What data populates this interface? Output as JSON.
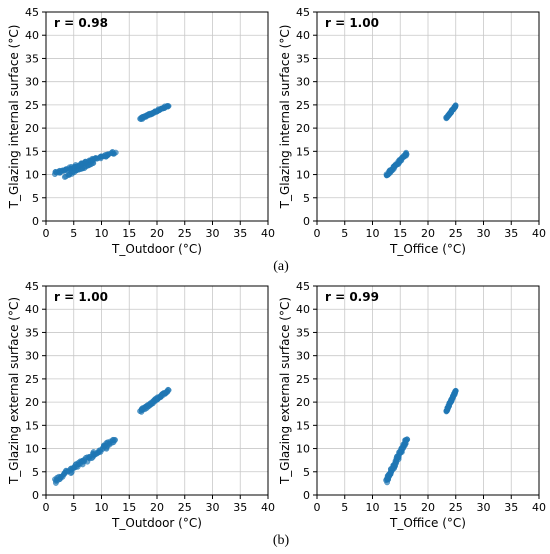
{
  "captions": {
    "a": "(a)",
    "b": "(b)"
  },
  "colors": {
    "point": "#1f77b4",
    "grid": "#c8c8c8",
    "axis": "#000000"
  },
  "chart_data": [
    {
      "type": "scatter",
      "annotation": "r = 0.98",
      "xlabel": "T_Outdoor (°C)",
      "ylabel": "T_Glazing internal surface (°C)",
      "xlim": [
        0,
        40
      ],
      "ylim": [
        0,
        45
      ],
      "xticks": [
        0,
        5,
        10,
        15,
        20,
        25,
        30,
        35,
        40
      ],
      "yticks": [
        0,
        5,
        10,
        15,
        20,
        25,
        30,
        35,
        40,
        45
      ],
      "grid": true,
      "clusters": [
        {
          "x_range": [
            1.5,
            12.5
          ],
          "y_range": [
            10.2,
            14.8
          ],
          "n": 80
        },
        {
          "x_range": [
            3.5,
            8.5
          ],
          "y_range": [
            9.6,
            12.5
          ],
          "n": 25
        },
        {
          "x_range": [
            17.0,
            22.0
          ],
          "y_range": [
            22.0,
            24.8
          ],
          "n": 60
        }
      ]
    },
    {
      "type": "scatter",
      "annotation": "r = 1.00",
      "xlabel": "T_Office (°C)",
      "ylabel": "T_Glazing internal surface (°C)",
      "xlim": [
        0,
        40
      ],
      "ylim": [
        0,
        45
      ],
      "xticks": [
        0,
        5,
        10,
        15,
        20,
        25,
        30,
        35,
        40
      ],
      "yticks": [
        0,
        5,
        10,
        15,
        20,
        25,
        30,
        35,
        40,
        45
      ],
      "grid": true,
      "clusters": [
        {
          "x_range": [
            12.5,
            16.2
          ],
          "y_range": [
            9.8,
            14.6
          ],
          "n": 60
        },
        {
          "x_range": [
            23.3,
            25.0
          ],
          "y_range": [
            22.2,
            24.8
          ],
          "n": 50
        }
      ]
    },
    {
      "type": "scatter",
      "annotation": "r = 1.00",
      "xlabel": "T_Outdoor (°C)",
      "ylabel": "T_Glazing external surface (°C)",
      "xlim": [
        0,
        40
      ],
      "ylim": [
        0,
        45
      ],
      "xticks": [
        0,
        5,
        10,
        15,
        20,
        25,
        30,
        35,
        40
      ],
      "yticks": [
        0,
        5,
        10,
        15,
        20,
        25,
        30,
        35,
        40,
        45
      ],
      "grid": true,
      "clusters": [
        {
          "x_range": [
            1.5,
            12.5
          ],
          "y_range": [
            3.0,
            12.0
          ],
          "n": 90
        },
        {
          "x_range": [
            17.0,
            22.0
          ],
          "y_range": [
            18.0,
            22.5
          ],
          "n": 60
        }
      ]
    },
    {
      "type": "scatter",
      "annotation": "r = 0.99",
      "xlabel": "T_Office (°C)",
      "ylabel": "T_Glazing external surface (°C)",
      "xlim": [
        0,
        40
      ],
      "ylim": [
        0,
        45
      ],
      "xticks": [
        0,
        5,
        10,
        15,
        20,
        25,
        30,
        35,
        40
      ],
      "yticks": [
        0,
        5,
        10,
        15,
        20,
        25,
        30,
        35,
        40,
        45
      ],
      "grid": true,
      "clusters": [
        {
          "x_range": [
            12.5,
            16.2
          ],
          "y_range": [
            3.0,
            12.0
          ],
          "n": 80
        },
        {
          "x_range": [
            23.3,
            25.0
          ],
          "y_range": [
            18.0,
            22.5
          ],
          "n": 50
        }
      ]
    }
  ]
}
